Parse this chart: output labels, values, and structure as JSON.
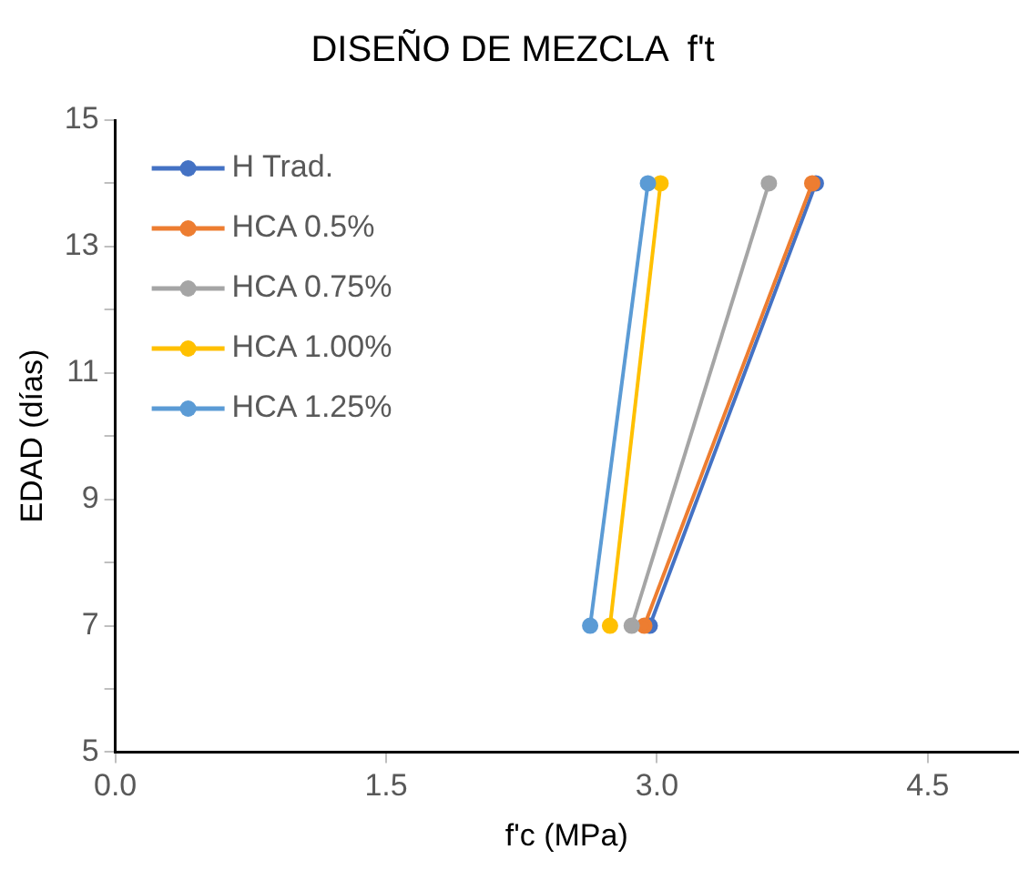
{
  "chart_data": {
    "type": "line",
    "title": "DISEÑO DE MEZCLA  f't",
    "xlabel": "f'c (MPa)",
    "ylabel": "EDAD (días)",
    "xlim": [
      0,
      5
    ],
    "xticks": [
      {
        "value": 0,
        "label": "0.0"
      },
      1.5,
      {
        "value": 3,
        "label": "3.0"
      },
      4.5
    ],
    "ylim": [
      5,
      15
    ],
    "yticks": [
      5,
      {
        "value": 6,
        "label": null
      },
      7,
      {
        "value": 8,
        "label": null
      },
      9,
      {
        "value": 10,
        "label": null
      },
      11,
      {
        "value": 12,
        "label": null
      },
      13,
      {
        "value": 14,
        "label": null
      },
      15
    ],
    "grid": false,
    "legend": "top left",
    "marker": "circle",
    "line_style": "solid",
    "series": [
      {
        "name": "H Trad.",
        "color": "#4472c4",
        "x": [
          2.96,
          3.88
        ],
        "values": [
          7,
          14
        ]
      },
      {
        "name": "HCA 0.5%",
        "color": "#ed7d31",
        "x": [
          2.93,
          3.86
        ],
        "values": [
          7,
          14
        ]
      },
      {
        "name": "HCA 0.75%",
        "color": "#a5a5a5",
        "x": [
          2.86,
          3.62
        ],
        "values": [
          7,
          14
        ]
      },
      {
        "name": "HCA 1.00%",
        "color": "#ffc000",
        "x": [
          2.74,
          3.02
        ],
        "values": [
          7,
          14
        ]
      },
      {
        "name": "HCA 1.25%",
        "color": "#5b9bd5",
        "x": [
          2.63,
          2.95
        ],
        "values": [
          7,
          14
        ]
      }
    ]
  }
}
